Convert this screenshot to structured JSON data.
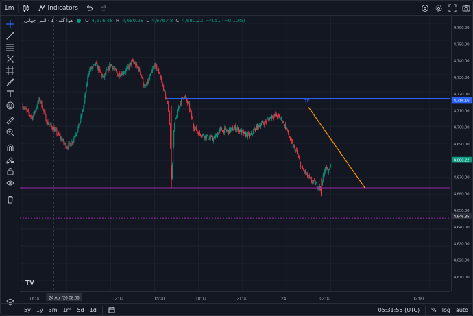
{
  "toolbar": {
    "interval": "1m",
    "indicators_label": "Indicators"
  },
  "legend": {
    "symbol": "هوا گلد · 1 · انس جهانی",
    "o_label": "O",
    "o_value": "4,676.48",
    "h_label": "H",
    "h_value": "4,680.28",
    "l_label": "L",
    "l_value": "4,676.48",
    "c_label": "C",
    "c_value": "4,680.22",
    "change": "+4.51 (+0.10%)"
  },
  "price_axis": {
    "ticks": [
      "4,760.00",
      "4,750.00",
      "4,740.00",
      "4,730.00",
      "4,720.00",
      "4,710.00",
      "4,700.00",
      "4,690.00",
      "4,680.00",
      "4,670.00",
      "4,660.00",
      "4,650.00",
      "4,640.00",
      "4,630.00",
      "4,620.00",
      "4,610.00"
    ],
    "tp_label": "4,716.16",
    "last_label": "4,680.22",
    "dashed_label": "4,646.35"
  },
  "time_axis": {
    "ticks": [
      "09:00",
      "12:00",
      "15:00",
      "18:00",
      "21:00",
      "24",
      "03:00",
      "06:00",
      "12:00"
    ],
    "cursor_label": "24 Apr '26   08:06"
  },
  "annotations": {
    "tp": "TP"
  },
  "bottombar": {
    "ranges": [
      "5y",
      "1y",
      "3m",
      "1m",
      "5d",
      "1d"
    ],
    "clock": "05:31:55 (UTC)",
    "percent": "%",
    "log": "log",
    "auto": "auto"
  },
  "colors": {
    "background": "#131722",
    "up": "#089981",
    "down": "#f23645",
    "tp_line": "#2962ff",
    "support_line": "#9c27b0",
    "trend_line": "#ff9800",
    "last_price": "#089981"
  },
  "chart_data": {
    "type": "candlestick",
    "price_range": [
      4604,
      4764
    ],
    "tp_level": 4716.16,
    "support_level": 4664,
    "dashed_level": 4646.35,
    "last_price": 4680.22,
    "trend_line": {
      "from": [
        "01:30",
        4711
      ],
      "to": [
        "05:20",
        4664
      ]
    }
  }
}
